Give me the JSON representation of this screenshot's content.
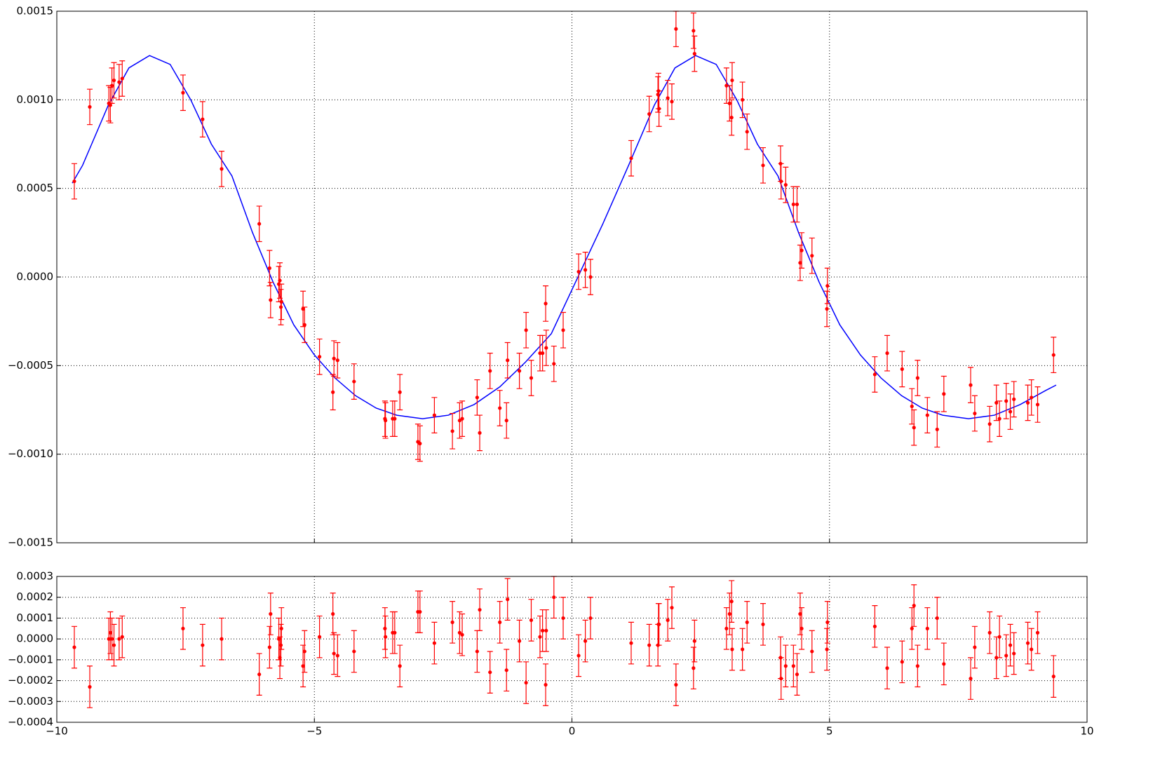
{
  "chart_data": [
    {
      "type": "scatter",
      "xlim": [
        -10,
        10
      ],
      "ylim": [
        -0.0015,
        0.0015
      ],
      "xticks": [
        -10,
        -5,
        0,
        5,
        10
      ],
      "yticks": [
        {
          "value": -0.0015,
          "label": "−0.0015"
        },
        {
          "value": -0.001,
          "label": "−0.0010"
        },
        {
          "value": -0.0005,
          "label": "−0.0005"
        },
        {
          "value": 0,
          "label": "0.0000"
        },
        {
          "value": 0.0005,
          "label": "0.0005"
        },
        {
          "value": 0.001,
          "label": "0.0010"
        },
        {
          "value": 0.0015,
          "label": "0.0015"
        }
      ],
      "grid": true,
      "series": [
        {
          "type": "line",
          "color": "#0000ff",
          "x": [
            -9.7,
            -9.5,
            -9.0,
            -8.6,
            -8.2,
            -7.8,
            -7.4,
            -7.0,
            -6.6,
            -6.2,
            -5.8,
            -5.4,
            -5.0,
            -4.6,
            -4.2,
            -3.8,
            -3.4,
            -2.9,
            -2.4,
            -1.9,
            -1.4,
            -0.9,
            -0.4,
            0.1,
            0.6,
            1.1,
            1.6,
            2.0,
            2.4,
            2.8,
            3.2,
            3.6,
            4.0,
            4.4,
            4.8,
            5.2,
            5.6,
            6.0,
            6.4,
            6.8,
            7.2,
            7.7,
            8.2,
            8.7,
            9.2,
            9.4
          ],
          "values": [
            0.00053,
            0.00063,
            0.00097,
            0.00118,
            0.00125,
            0.0012,
            0.001,
            0.00075,
            0.00057,
            0.00025,
            -3e-05,
            -0.00027,
            -0.00044,
            -0.00057,
            -0.00067,
            -0.00074,
            -0.00078,
            -0.0008,
            -0.00078,
            -0.00072,
            -0.00062,
            -0.00048,
            -0.00032,
            -1e-05,
            0.0003,
            0.00063,
            0.00097,
            0.00118,
            0.00125,
            0.0012,
            0.001,
            0.00075,
            0.00057,
            0.00025,
            -3e-05,
            -0.00027,
            -0.00044,
            -0.00057,
            -0.00067,
            -0.00074,
            -0.00078,
            -0.0008,
            -0.00078,
            -0.00072,
            -0.00064,
            -0.00061
          ]
        },
        {
          "type": "errorbar",
          "color": "#ff0000",
          "error": 0.0001,
          "x": [
            -9.66,
            -9.36,
            -8.99,
            -8.96,
            -8.93,
            -8.89,
            -8.79,
            -8.73,
            -7.55,
            -7.17,
            -6.8,
            -6.07,
            -5.87,
            -5.85,
            -5.69,
            -5.67,
            -5.65,
            -5.64,
            -5.22,
            -5.19,
            -4.9,
            -4.64,
            -4.62,
            -4.55,
            -4.23,
            -3.63,
            -3.62,
            -3.48,
            -3.44,
            -3.34,
            -2.99,
            -2.95,
            -2.67,
            -2.32,
            -2.18,
            -2.13,
            -1.84,
            -1.79,
            -1.59,
            -1.4,
            -1.27,
            -1.25,
            -1.02,
            -0.89,
            -0.79,
            -0.62,
            -0.57,
            -0.51,
            -0.5,
            -0.35,
            -0.17,
            0.13,
            0.26,
            0.36,
            1.15,
            1.5,
            1.67,
            1.68,
            1.69,
            1.86,
            1.94,
            2.02,
            2.36,
            2.38,
            3.0,
            3.06,
            3.1,
            3.11,
            3.31,
            3.4,
            3.71,
            4.05,
            4.06,
            4.15,
            4.3,
            4.37,
            4.43,
            4.46,
            4.66,
            4.95,
            4.96,
            5.88,
            6.12,
            6.41,
            6.6,
            6.64,
            6.71,
            6.9,
            7.09,
            7.22,
            7.74,
            7.82,
            8.11,
            8.24,
            8.3,
            8.43,
            8.51,
            8.58,
            8.85,
            8.92,
            9.04,
            9.35
          ],
          "values": [
            0.00054,
            0.00096,
            0.00098,
            0.00097,
            0.00108,
            0.00111,
            0.0011,
            0.00112,
            0.00104,
            0.00089,
            0.00061,
            0.0003,
            5e-05,
            -0.00013,
            -4e-05,
            -2e-05,
            -0.00017,
            -0.00014,
            -0.00018,
            -0.00027,
            -0.00045,
            -0.00065,
            -0.00046,
            -0.00047,
            -0.00059,
            -0.0008,
            -0.00081,
            -0.0008,
            -0.0008,
            -0.00065,
            -0.00093,
            -0.00094,
            -0.00078,
            -0.00087,
            -0.00081,
            -0.0008,
            -0.00068,
            -0.00088,
            -0.00053,
            -0.00074,
            -0.00081,
            -0.00047,
            -0.00053,
            -0.0003,
            -0.00057,
            -0.00043,
            -0.00043,
            -0.00015,
            -0.0004,
            -0.00049,
            -0.0003,
            3e-05,
            4e-05,
            0,
            0.00067,
            0.00092,
            0.00103,
            0.00105,
            0.00095,
            0.00101,
            0.00099,
            0.0014,
            0.00139,
            0.00126,
            0.00108,
            0.00098,
            0.0009,
            0.00111,
            0.001,
            0.00082,
            0.00063,
            0.00064,
            0.00054,
            0.00052,
            0.00041,
            0.00041,
            8e-05,
            0.00015,
            0.00012,
            -0.00018,
            -5e-05,
            -0.00055,
            -0.00043,
            -0.00052,
            -0.00073,
            -0.00085,
            -0.00057,
            -0.00078,
            -0.00086,
            -0.00066,
            -0.00061,
            -0.00077,
            -0.00083,
            -0.00071,
            -0.0008,
            -0.0007,
            -0.00076,
            -0.00069,
            -0.00071,
            -0.00068,
            -0.00072,
            -0.00044
          ]
        }
      ]
    },
    {
      "type": "scatter",
      "xlim": [
        -10,
        10
      ],
      "ylim": [
        -0.0004,
        0.0003
      ],
      "xticks": [
        {
          "value": -10,
          "label": "−10"
        },
        {
          "value": -5,
          "label": "−5"
        },
        0,
        5,
        10
      ],
      "yticks": [
        {
          "value": -0.0004,
          "label": "−0.0004"
        },
        {
          "value": -0.0003,
          "label": "−0.0003"
        },
        {
          "value": -0.0002,
          "label": "−0.0002"
        },
        {
          "value": -0.0001,
          "label": "−0.0001"
        },
        {
          "value": 0,
          "label": "0.0000"
        },
        {
          "value": 0.0001,
          "label": "0.0001"
        },
        {
          "value": 0.0002,
          "label": "0.0002"
        },
        {
          "value": 0.0003,
          "label": "0.0003"
        }
      ],
      "grid": true,
      "series": [
        {
          "type": "errorbar",
          "color": "#ff0000",
          "error": 0.0001,
          "x": [
            -9.66,
            -9.36,
            -8.99,
            -8.96,
            -8.93,
            -8.89,
            -8.79,
            -8.73,
            -7.55,
            -7.17,
            -6.8,
            -6.07,
            -5.87,
            -5.85,
            -5.69,
            -5.67,
            -5.65,
            -5.64,
            -5.22,
            -5.19,
            -4.9,
            -4.64,
            -4.62,
            -4.55,
            -4.23,
            -3.63,
            -3.62,
            -3.48,
            -3.44,
            -3.34,
            -2.99,
            -2.95,
            -2.67,
            -2.32,
            -2.18,
            -2.13,
            -1.84,
            -1.79,
            -1.59,
            -1.4,
            -1.27,
            -1.25,
            -1.02,
            -0.89,
            -0.79,
            -0.62,
            -0.57,
            -0.51,
            -0.5,
            -0.35,
            -0.17,
            0.13,
            0.26,
            0.36,
            1.15,
            1.5,
            1.67,
            1.68,
            1.69,
            1.86,
            1.94,
            2.02,
            2.36,
            2.38,
            3.0,
            3.06,
            3.1,
            3.11,
            3.31,
            3.4,
            3.71,
            4.05,
            4.06,
            4.15,
            4.3,
            4.37,
            4.43,
            4.46,
            4.66,
            4.95,
            4.96,
            5.88,
            6.12,
            6.41,
            6.6,
            6.64,
            6.71,
            6.9,
            7.09,
            7.22,
            7.74,
            7.82,
            8.11,
            8.24,
            8.3,
            8.43,
            8.51,
            8.58,
            8.85,
            8.92,
            9.04,
            9.35
          ],
          "values": [
            -4e-05,
            -0.00023,
            0,
            3e-05,
            0,
            -3e-05,
            0,
            1e-05,
            5e-05,
            -3e-05,
            0,
            -0.00017,
            -4e-05,
            0.00012,
            0,
            -9e-05,
            -3e-05,
            5e-05,
            -0.00013,
            -6e-05,
            1e-05,
            0.00012,
            -7e-05,
            -8e-05,
            -6e-05,
            5e-05,
            1e-05,
            3e-05,
            3e-05,
            -0.00013,
            0.00013,
            0.00013,
            -2e-05,
            8e-05,
            3e-05,
            2e-05,
            -6e-05,
            0.00014,
            -0.00016,
            8e-05,
            -0.00015,
            0.00019,
            -1e-05,
            -0.00021,
            9e-05,
            1e-05,
            4e-05,
            -0.00022,
            4e-05,
            0.0002,
            0.0001,
            -8e-05,
            -1e-05,
            0.0001,
            -2e-05,
            -3e-05,
            -3e-05,
            7e-05,
            7e-05,
            9e-05,
            0.00015,
            -0.00022,
            -0.00014,
            -1e-05,
            5e-05,
            0.00012,
            0.00018,
            -5e-05,
            -5e-05,
            8e-05,
            7e-05,
            -9e-05,
            -0.00019,
            -0.00013,
            -0.00013,
            -0.00017,
            0.00012,
            5e-05,
            -6e-05,
            -5e-05,
            8e-05,
            6e-05,
            -0.00014,
            -0.00011,
            5e-05,
            0.00016,
            -0.00013,
            5e-05,
            0.0001,
            -0.00012,
            -0.00019,
            -4e-05,
            3e-05,
            -9e-05,
            1e-05,
            -8e-05,
            -3e-05,
            -7e-05,
            -2e-05,
            -5e-05,
            3e-05,
            -0.00018
          ]
        }
      ]
    }
  ]
}
